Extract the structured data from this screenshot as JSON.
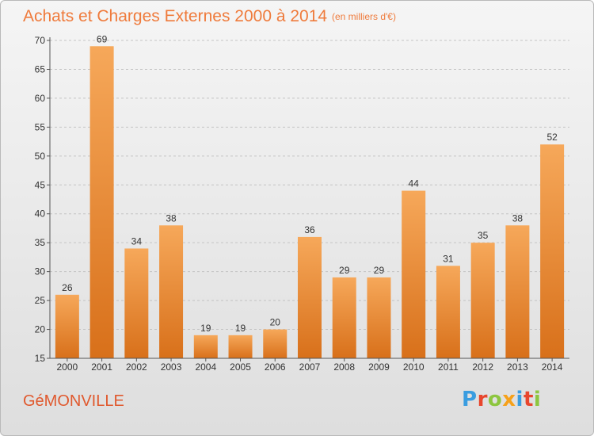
{
  "header": {
    "title": "Achats et Charges Externes 2000 à 2014",
    "subtitle": "(en milliers d'€)"
  },
  "footer": {
    "commune": "GéMONVILLE",
    "logo_letters": [
      "P",
      "r",
      "o",
      "x",
      "i",
      "t",
      "i"
    ],
    "logo_colors": [
      "#3a9de0",
      "#e8462d",
      "#8dc63f",
      "#f6a11a",
      "#3a9de0",
      "#e8462d",
      "#8dc63f"
    ]
  },
  "colors": {
    "bar": "#f08a2c",
    "bar_light": "#f6a85a",
    "bar_dark": "#d86a14",
    "title": "#ef7b3c",
    "grid": "#c8c8c8"
  },
  "chart_data": {
    "type": "bar",
    "categories": [
      "2000",
      "2001",
      "2002",
      "2003",
      "2004",
      "2005",
      "2006",
      "2007",
      "2008",
      "2009",
      "2010",
      "2011",
      "2012",
      "2013",
      "2014"
    ],
    "values": [
      26,
      69,
      34,
      38,
      19,
      19,
      20,
      36,
      29,
      29,
      44,
      31,
      35,
      38,
      52
    ],
    "data_labels": [
      "26",
      "69",
      "34",
      "38",
      "19",
      "19",
      "20",
      "36",
      "29",
      "29",
      "44",
      "31",
      "35",
      "38",
      "52"
    ],
    "ylim": [
      15,
      70
    ],
    "yticks": [
      15,
      20,
      25,
      30,
      35,
      40,
      45,
      50,
      55,
      60,
      65,
      70
    ],
    "ytick_labels": [
      "15",
      "20",
      "25",
      "30",
      "35",
      "40",
      "45",
      "50",
      "55",
      "60",
      "65",
      "70"
    ],
    "grid": true
  }
}
